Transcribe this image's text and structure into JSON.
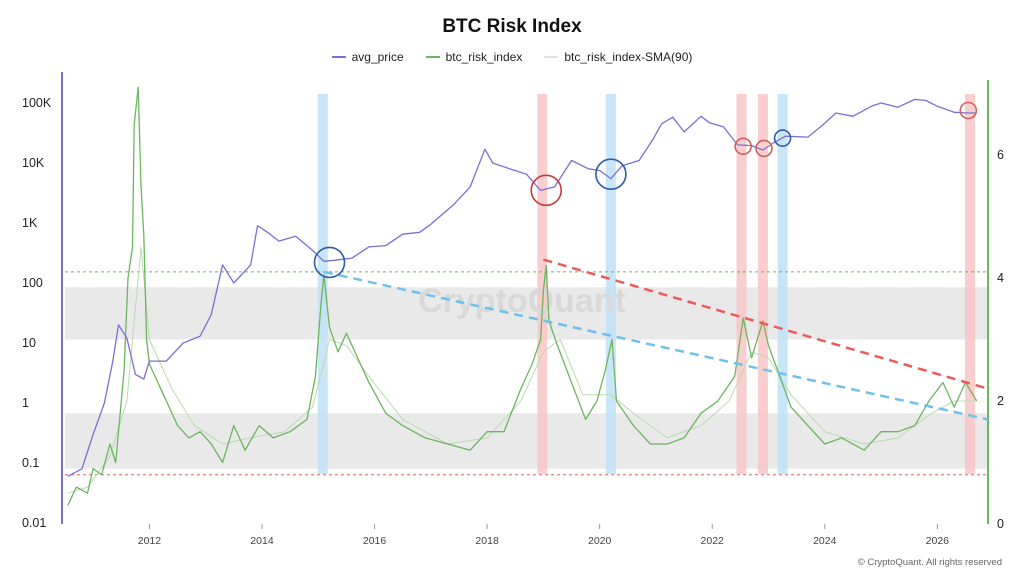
{
  "chart_data": {
    "type": "line",
    "title": "BTC Risk Index",
    "watermark": "CryptoQuant",
    "footer": "© CryptoQuant. All rights reserved",
    "x_ticks": [
      "2012",
      "2014",
      "2016",
      "2018",
      "2020",
      "2022",
      "2024",
      "2026"
    ],
    "x_range": [
      2010.5,
      2026.9
    ],
    "y_left": {
      "scale": "log",
      "ticks": [
        "100K",
        "10K",
        "1K",
        "100",
        "10",
        "1",
        "0.1",
        "0.01"
      ],
      "range": [
        0.01,
        100000
      ],
      "color": "#7b6fd6"
    },
    "y_right": {
      "scale": "linear",
      "ticks": [
        "6",
        "4",
        "2",
        "0"
      ],
      "range": [
        0,
        7.3
      ],
      "color": "#6db55e"
    },
    "series": [
      {
        "name": "avg_price",
        "color": "#7b6fd6",
        "axis": "left",
        "points": [
          [
            2010.55,
            0.06
          ],
          [
            2010.8,
            0.08
          ],
          [
            2011.0,
            0.3
          ],
          [
            2011.2,
            1
          ],
          [
            2011.35,
            5
          ],
          [
            2011.45,
            20
          ],
          [
            2011.6,
            12
          ],
          [
            2011.75,
            3
          ],
          [
            2011.9,
            2.5
          ],
          [
            2012.0,
            5
          ],
          [
            2012.3,
            5
          ],
          [
            2012.6,
            10
          ],
          [
            2012.9,
            13
          ],
          [
            2013.1,
            30
          ],
          [
            2013.3,
            200
          ],
          [
            2013.5,
            100
          ],
          [
            2013.8,
            200
          ],
          [
            2013.92,
            900
          ],
          [
            2014.1,
            700
          ],
          [
            2014.3,
            500
          ],
          [
            2014.6,
            600
          ],
          [
            2014.9,
            350
          ],
          [
            2015.1,
            230
          ],
          [
            2015.3,
            240
          ],
          [
            2015.6,
            260
          ],
          [
            2015.9,
            400
          ],
          [
            2016.2,
            420
          ],
          [
            2016.5,
            650
          ],
          [
            2016.8,
            700
          ],
          [
            2017.0,
            950
          ],
          [
            2017.4,
            2000
          ],
          [
            2017.7,
            4000
          ],
          [
            2017.96,
            17000
          ],
          [
            2018.1,
            10000
          ],
          [
            2018.4,
            8000
          ],
          [
            2018.7,
            6500
          ],
          [
            2018.95,
            3500
          ],
          [
            2019.2,
            4000
          ],
          [
            2019.5,
            11000
          ],
          [
            2019.8,
            8000
          ],
          [
            2020.0,
            7500
          ],
          [
            2020.2,
            5500
          ],
          [
            2020.4,
            9000
          ],
          [
            2020.7,
            11000
          ],
          [
            2020.95,
            25000
          ],
          [
            2021.1,
            45000
          ],
          [
            2021.3,
            58000
          ],
          [
            2021.5,
            33000
          ],
          [
            2021.8,
            60000
          ],
          [
            2021.95,
            47000
          ],
          [
            2022.2,
            40000
          ],
          [
            2022.45,
            20000
          ],
          [
            2022.7,
            19500
          ],
          [
            2022.9,
            16500
          ],
          [
            2023.1,
            22000
          ],
          [
            2023.3,
            28000
          ],
          [
            2023.7,
            27000
          ],
          [
            2023.95,
            42000
          ],
          [
            2024.2,
            68000
          ],
          [
            2024.5,
            60000
          ],
          [
            2024.85,
            90000
          ],
          [
            2025.0,
            100000
          ],
          [
            2025.3,
            85000
          ],
          [
            2025.6,
            115000
          ],
          [
            2025.8,
            110000
          ],
          [
            2026.0,
            88000
          ],
          [
            2026.3,
            70000
          ],
          [
            2026.55,
            68000
          ],
          [
            2026.7,
            68000
          ]
        ]
      },
      {
        "name": "btc_risk_index",
        "color": "#6db55e",
        "axis": "right",
        "points": [
          [
            2010.55,
            0.3
          ],
          [
            2010.7,
            0.6
          ],
          [
            2010.9,
            0.5
          ],
          [
            2011.0,
            0.9
          ],
          [
            2011.15,
            0.8
          ],
          [
            2011.3,
            1.3
          ],
          [
            2011.4,
            1.0
          ],
          [
            2011.55,
            2.5
          ],
          [
            2011.62,
            4.0
          ],
          [
            2011.7,
            4.5
          ],
          [
            2011.73,
            6.5
          ],
          [
            2011.8,
            7.1
          ],
          [
            2011.85,
            5.5
          ],
          [
            2011.9,
            4.7
          ],
          [
            2011.95,
            3.0
          ],
          [
            2012.0,
            2.6
          ],
          [
            2012.2,
            2.2
          ],
          [
            2012.5,
            1.6
          ],
          [
            2012.7,
            1.4
          ],
          [
            2012.9,
            1.5
          ],
          [
            2013.1,
            1.3
          ],
          [
            2013.3,
            1.0
          ],
          [
            2013.5,
            1.6
          ],
          [
            2013.7,
            1.2
          ],
          [
            2013.95,
            1.6
          ],
          [
            2014.2,
            1.4
          ],
          [
            2014.5,
            1.5
          ],
          [
            2014.8,
            1.7
          ],
          [
            2014.95,
            2.4
          ],
          [
            2015.05,
            3.6
          ],
          [
            2015.1,
            4.05
          ],
          [
            2015.2,
            3.2
          ],
          [
            2015.35,
            2.8
          ],
          [
            2015.5,
            3.1
          ],
          [
            2015.7,
            2.7
          ],
          [
            2015.9,
            2.3
          ],
          [
            2016.2,
            1.8
          ],
          [
            2016.5,
            1.6
          ],
          [
            2016.9,
            1.4
          ],
          [
            2017.3,
            1.3
          ],
          [
            2017.7,
            1.2
          ],
          [
            2018.0,
            1.5
          ],
          [
            2018.3,
            1.5
          ],
          [
            2018.6,
            2.2
          ],
          [
            2018.8,
            2.6
          ],
          [
            2018.95,
            3.0
          ],
          [
            2019.0,
            3.8
          ],
          [
            2019.05,
            4.2
          ],
          [
            2019.1,
            3.3
          ],
          [
            2019.25,
            2.9
          ],
          [
            2019.5,
            2.3
          ],
          [
            2019.75,
            1.7
          ],
          [
            2019.95,
            2.0
          ],
          [
            2020.1,
            2.5
          ],
          [
            2020.22,
            3.0
          ],
          [
            2020.3,
            2.0
          ],
          [
            2020.6,
            1.6
          ],
          [
            2020.9,
            1.3
          ],
          [
            2021.2,
            1.3
          ],
          [
            2021.5,
            1.4
          ],
          [
            2021.8,
            1.8
          ],
          [
            2022.1,
            2.0
          ],
          [
            2022.4,
            2.4
          ],
          [
            2022.55,
            3.35
          ],
          [
            2022.7,
            2.7
          ],
          [
            2022.9,
            3.3
          ],
          [
            2023.0,
            2.9
          ],
          [
            2023.2,
            2.4
          ],
          [
            2023.4,
            1.9
          ],
          [
            2023.7,
            1.6
          ],
          [
            2024.0,
            1.3
          ],
          [
            2024.3,
            1.4
          ],
          [
            2024.7,
            1.2
          ],
          [
            2025.0,
            1.5
          ],
          [
            2025.3,
            1.5
          ],
          [
            2025.6,
            1.6
          ],
          [
            2025.85,
            2.0
          ],
          [
            2026.1,
            2.3
          ],
          [
            2026.3,
            1.9
          ],
          [
            2026.5,
            2.3
          ],
          [
            2026.7,
            2.0
          ]
        ]
      },
      {
        "name": "btc_risk_index-SMA(90)",
        "color": "#b9dcae",
        "axis": "right",
        "points": [
          [
            2010.55,
            0.5
          ],
          [
            2010.9,
            0.6
          ],
          [
            2011.3,
            1.1
          ],
          [
            2011.6,
            2.0
          ],
          [
            2011.85,
            4.5
          ],
          [
            2012.0,
            3.0
          ],
          [
            2012.4,
            2.2
          ],
          [
            2012.8,
            1.6
          ],
          [
            2013.3,
            1.3
          ],
          [
            2013.8,
            1.4
          ],
          [
            2014.4,
            1.5
          ],
          [
            2014.9,
            1.9
          ],
          [
            2015.2,
            3.0
          ],
          [
            2015.5,
            2.9
          ],
          [
            2015.9,
            2.4
          ],
          [
            2016.5,
            1.7
          ],
          [
            2017.3,
            1.3
          ],
          [
            2018.0,
            1.4
          ],
          [
            2018.6,
            2.0
          ],
          [
            2019.0,
            2.8
          ],
          [
            2019.3,
            3.0
          ],
          [
            2019.7,
            2.1
          ],
          [
            2020.2,
            2.1
          ],
          [
            2020.6,
            1.8
          ],
          [
            2021.2,
            1.4
          ],
          [
            2021.8,
            1.6
          ],
          [
            2022.3,
            2.0
          ],
          [
            2022.7,
            2.8
          ],
          [
            2023.0,
            2.7
          ],
          [
            2023.4,
            2.1
          ],
          [
            2024.0,
            1.5
          ],
          [
            2024.7,
            1.3
          ],
          [
            2025.3,
            1.4
          ],
          [
            2025.9,
            1.8
          ],
          [
            2026.3,
            2.0
          ],
          [
            2026.7,
            2.0
          ]
        ]
      }
    ],
    "trendlines": [
      {
        "color": "#e85c5c",
        "axis": "right",
        "from": [
          2019.0,
          4.3
        ],
        "to": [
          2026.9,
          2.2
        ]
      },
      {
        "color": "#6fc0ea",
        "axis": "right",
        "from": [
          2015.1,
          4.1
        ],
        "to": [
          2026.9,
          1.7
        ]
      }
    ],
    "reference_lines": [
      {
        "color": "#6db55e",
        "axis": "right",
        "value": 4.1
      },
      {
        "color": "#e85c5c",
        "axis": "right",
        "value": 0.8
      }
    ],
    "bands": [
      {
        "axis": "right",
        "from": 3.0,
        "to": 3.85,
        "color": "#e9e9ea"
      },
      {
        "axis": "right",
        "from": 0.9,
        "to": 1.8,
        "color": "#e9e9ea"
      }
    ],
    "vertical_highlights": [
      {
        "x": 2015.08,
        "color": "#bfe1f7"
      },
      {
        "x": 2018.98,
        "color": "#f8c6c6"
      },
      {
        "x": 2020.2,
        "color": "#bfe1f7"
      },
      {
        "x": 2022.52,
        "color": "#f8c6c6"
      },
      {
        "x": 2022.9,
        "color": "#f8c6c6"
      },
      {
        "x": 2023.25,
        "color": "#bfe1f7"
      },
      {
        "x": 2026.58,
        "color": "#f8c6c6"
      }
    ],
    "circles": [
      {
        "x": 2015.2,
        "price": 220,
        "color": "#2a5caa"
      },
      {
        "x": 2019.05,
        "price": 3500,
        "color": "#c43b3b"
      },
      {
        "x": 2020.2,
        "price": 6500,
        "color": "#2a5caa"
      },
      {
        "x": 2022.55,
        "price": 19000,
        "color": "#d06060"
      },
      {
        "x": 2022.92,
        "price": 17500,
        "color": "#d06060"
      },
      {
        "x": 2023.25,
        "price": 26000,
        "color": "#2a5caa"
      },
      {
        "x": 2026.55,
        "price": 75000,
        "color": "#d06060"
      }
    ]
  }
}
